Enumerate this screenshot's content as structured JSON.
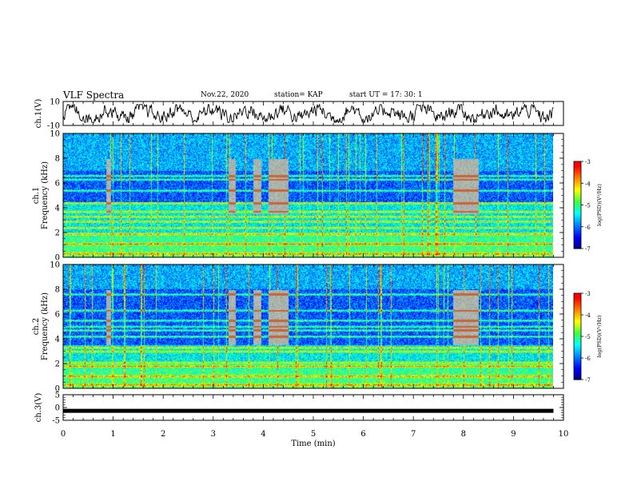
{
  "header": {
    "title": "VLF Spectra",
    "date": "Nov.22, 2020",
    "station": "station= KAP",
    "start": "start  UT =   17: 30: 1"
  },
  "colors": {
    "colormap": [
      "#000080",
      "#0000ff",
      "#0080ff",
      "#00ffff",
      "#40ff40",
      "#ffff00",
      "#ff8000",
      "#ff0000",
      "#ffffff"
    ],
    "waveform": "#000000"
  },
  "chart_data": [
    {
      "type": "line",
      "name": "ch1-waveform",
      "ylabel": "ch.1(V)",
      "ylim": [
        -10,
        10
      ],
      "yticks": [
        "10",
        "-10"
      ],
      "xlim": [
        0,
        10
      ],
      "description_values": "noisy waveform oscillating roughly between -7 and +7 V across 0–9.8 min"
    },
    {
      "type": "heatmap",
      "name": "ch1-spectrogram",
      "ylabel": "ch.1\nFrequency (kHz)",
      "ylabel_lines": [
        "ch.1",
        "Frequency (kHz)"
      ],
      "ylim": [
        0,
        10
      ],
      "yticks": [
        "0",
        "2",
        "4",
        "6",
        "8",
        "10"
      ],
      "xlim": [
        0,
        10
      ],
      "data_extent_min": 9.8,
      "colorbar": {
        "label": "log(PSD)(V²/Hz)",
        "range": [
          -7,
          -3
        ],
        "ticks": [
          "-3",
          "-4",
          "-5",
          "-6",
          "-7"
        ]
      },
      "bands_khz": [
        0.3,
        1.1,
        1.9,
        2.4,
        2.9,
        3.3,
        3.7,
        4.4,
        5.4,
        6.3,
        6.6
      ],
      "quiet_band_khz": [
        4.5,
        7.0
      ],
      "quiet_gaps_min": [
        [
          0.85,
          0.95
        ],
        [
          3.3,
          3.45
        ],
        [
          3.8,
          3.95
        ],
        [
          4.1,
          4.5
        ],
        [
          7.8,
          8.3
        ]
      ]
    },
    {
      "type": "heatmap",
      "name": "ch2-spectrogram",
      "ylabel_lines": [
        "ch.2",
        "Frequency (kHz)"
      ],
      "ylim": [
        0,
        10
      ],
      "yticks": [
        "0",
        "2",
        "4",
        "6",
        "8",
        "10"
      ],
      "xlim": [
        0,
        10
      ],
      "data_extent_min": 9.8,
      "colorbar": {
        "label": "log(PSD)(V²/Hz)",
        "range": [
          -7,
          -3
        ],
        "ticks": [
          "-3",
          "-4",
          "-5",
          "-6",
          "-7"
        ]
      },
      "bands_khz": [
        0.3,
        1.0,
        1.8,
        2.1,
        3.0,
        3.3,
        4.2,
        4.7,
        5.0,
        5.5,
        6.3,
        7.6
      ],
      "quiet_band_khz": [
        3.5,
        8.0
      ],
      "quiet_gaps_min": [
        [
          0.85,
          0.95
        ],
        [
          3.3,
          3.45
        ],
        [
          3.8,
          3.95
        ],
        [
          4.1,
          4.5
        ],
        [
          7.8,
          8.3
        ]
      ]
    },
    {
      "type": "line",
      "name": "ch3-signal",
      "ylabel": "ch.3(V)",
      "ylim": [
        -5,
        5
      ],
      "yticks": [
        "5",
        "0",
        "-5"
      ],
      "xlim": [
        0,
        10
      ],
      "level": -1.3,
      "xlabel": "Time  (min)",
      "xticks": [
        "0",
        "1",
        "2",
        "3",
        "4",
        "5",
        "6",
        "7",
        "8",
        "9",
        "10"
      ]
    }
  ]
}
